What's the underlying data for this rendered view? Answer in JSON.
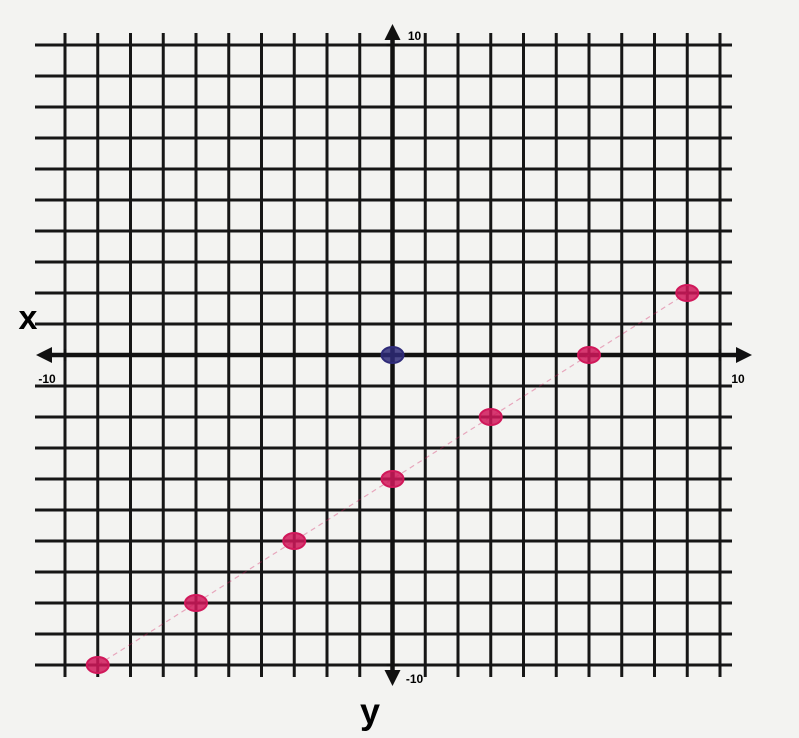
{
  "chart_data": {
    "type": "scatter",
    "x_label": "x",
    "y_label": "y",
    "xlim": [
      -10,
      10
    ],
    "ylim": [
      -10,
      10
    ],
    "xticks": [
      -10,
      10
    ],
    "yticks": [
      -10,
      10
    ],
    "grid": true,
    "series": [
      {
        "color": "#d0185a",
        "x": [
          -9,
          -6,
          -3,
          0,
          3,
          6,
          9
        ],
        "values": [
          -10,
          -8,
          -6,
          -4,
          -2,
          0,
          2
        ]
      },
      {
        "color": "#2e2a78",
        "x": [
          0
        ],
        "values": [
          0
        ]
      }
    ]
  }
}
